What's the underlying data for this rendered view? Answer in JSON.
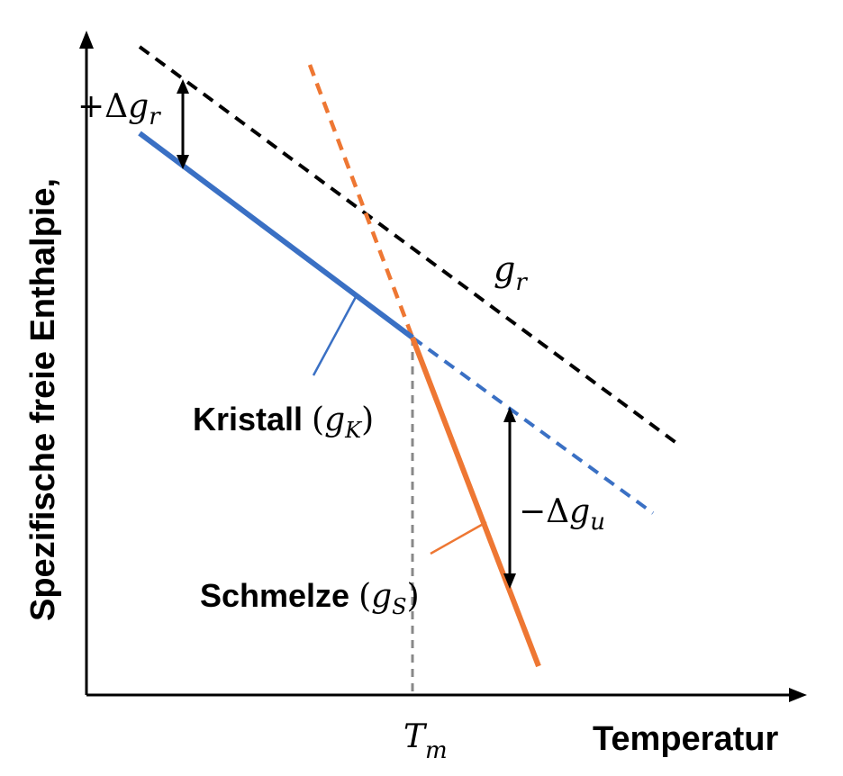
{
  "axes": {
    "y_label": "Spezifische freie Enthalpie,",
    "x_label": "Temperatur",
    "tm_label_main": "T",
    "tm_label_sub": "m"
  },
  "labels": {
    "kristall_word": "Kristall",
    "kristall_sym": "g",
    "kristall_sub": "K",
    "schmelze_word": "Schmelze",
    "schmelze_sym": "g",
    "schmelze_sub": "S",
    "gr_sym": "g",
    "gr_sub": "r",
    "delta_gr_sign": "+Δ",
    "delta_gr_sym": "g",
    "delta_gr_sub": "r",
    "delta_gu_sign": "−Δ",
    "delta_gu_sym": "g",
    "delta_gu_sub": "u",
    "paren_open": "(",
    "paren_close": ")"
  },
  "colors": {
    "kristall": "#3a70c4",
    "schmelze": "#ee7733",
    "reference": "#000000",
    "tm_line": "#888888"
  }
}
